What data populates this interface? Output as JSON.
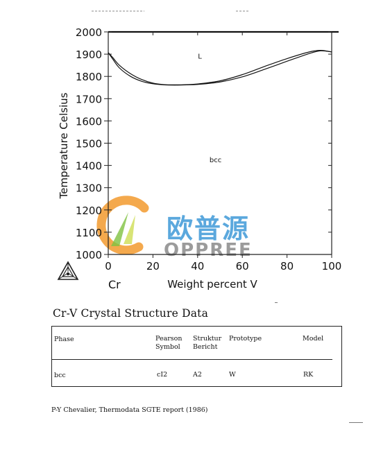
{
  "chart_data": {
    "type": "line",
    "xlabel": "Weight percent V",
    "ylabel": "Temperature Celsius",
    "xlim": [
      0,
      100
    ],
    "ylim": [
      1000,
      2000
    ],
    "x_ticks": [
      "0",
      "20",
      "40",
      "60",
      "80",
      "100"
    ],
    "y_ticks": [
      "1000",
      "1100",
      "1200",
      "1300",
      "1400",
      "1500",
      "1600",
      "1700",
      "1800",
      "1900",
      "2000"
    ],
    "element_label": "Cr",
    "annotations": [
      {
        "text": "L",
        "x": 41,
        "y": 1880
      },
      {
        "text": "bcc",
        "x": 48,
        "y": 1415
      }
    ],
    "series": [
      {
        "values_x": [
          0,
          2,
          5,
          10,
          15,
          20,
          25,
          30,
          35,
          40,
          50,
          60,
          70,
          80,
          90,
          95,
          100
        ],
        "values_y": [
          1907,
          1885,
          1850,
          1812,
          1786,
          1770,
          1763,
          1762,
          1763,
          1766,
          1780,
          1808,
          1845,
          1880,
          1910,
          1917,
          1910
        ]
      },
      {
        "values_x": [
          0,
          2,
          5,
          10,
          15,
          20,
          25,
          30,
          35,
          40,
          50,
          60,
          70,
          80,
          90,
          95,
          100
        ],
        "values_y": [
          1907,
          1878,
          1838,
          1800,
          1778,
          1767,
          1762,
          1761,
          1762,
          1764,
          1775,
          1798,
          1832,
          1868,
          1903,
          1915,
          1910
        ]
      }
    ]
  },
  "watermark": {
    "chinese": "欧普源",
    "latin": "OPPREE"
  },
  "section_title": "Cr-V Crystal Structure Data",
  "table": {
    "headers": {
      "phase": "Phase",
      "pearson": "Pearson\nSymbol",
      "struktur": "Struktur\nBericht",
      "prototype": "Prototype",
      "model": "Model"
    },
    "row": {
      "phase": "bcc",
      "pearson": "cI2",
      "struktur": "A2",
      "prototype": "W",
      "model": "RK"
    }
  },
  "reference": "P-Y Chevalier, Thermodata SGTE report (1986)"
}
